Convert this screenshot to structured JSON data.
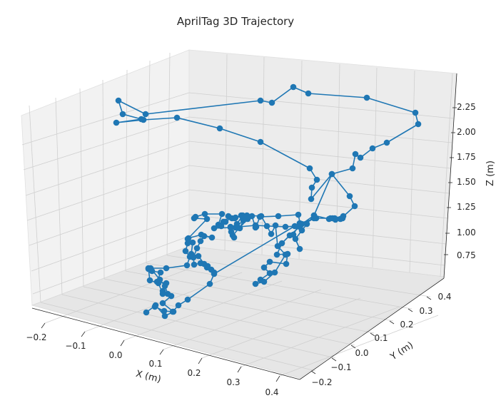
{
  "chart_data": {
    "type": "line3d",
    "title": "AprilTag 3D Trajectory",
    "xlabel": "X (m)",
    "ylabel": "Y (m)",
    "zlabel": "Z (m)",
    "xlim": [
      -0.23,
      0.43
    ],
    "ylim": [
      -0.26,
      0.47
    ],
    "zlim": [
      0.6,
      2.5
    ],
    "xticks": [
      "−0.2",
      "−0.1",
      "0.0",
      "0.1",
      "0.2",
      "0.3",
      "0.4"
    ],
    "yticks": [
      "−0.2",
      "−0.1",
      "0.0",
      "0.1",
      "0.2",
      "0.3",
      "0.4"
    ],
    "zticks": [
      "0.75",
      "1.00",
      "1.25",
      "1.50",
      "1.75",
      "2.00",
      "2.25"
    ],
    "grid": true,
    "marker": "circle",
    "color": "#1f77b4"
  }
}
